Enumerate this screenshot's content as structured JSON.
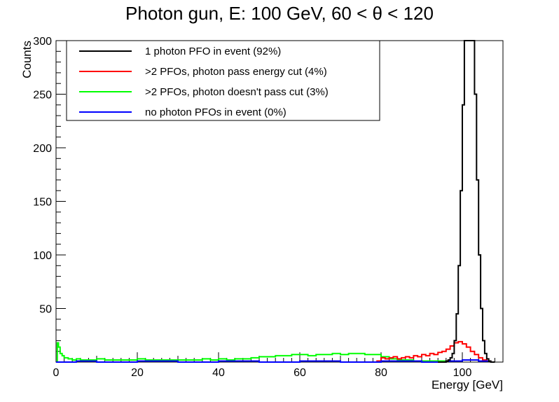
{
  "chart_data": {
    "type": "histogram",
    "title": "Photon gun, E: 100 GeV, 60 < θ < 120",
    "xlabel": "Energy [GeV]",
    "ylabel": "Counts",
    "xlim": [
      0,
      110
    ],
    "ylim": [
      0,
      300
    ],
    "x_ticks": [
      "0",
      "20",
      "40",
      "60",
      "80",
      "100"
    ],
    "y_ticks": [
      "50",
      "100",
      "150",
      "200",
      "250",
      "300"
    ],
    "legend_position": "top-left",
    "series": [
      {
        "name": "1 photon PFO in event (92%)",
        "color": "#000000",
        "points": [
          [
            94,
            0
          ],
          [
            95,
            0
          ],
          [
            96,
            1
          ],
          [
            96.5,
            2
          ],
          [
            97,
            4
          ],
          [
            97.5,
            8
          ],
          [
            98,
            20
          ],
          [
            98.5,
            45
          ],
          [
            99,
            90
          ],
          [
            99.5,
            160
          ],
          [
            100,
            240
          ],
          [
            100.5,
            300
          ],
          [
            102.5,
            300
          ],
          [
            103,
            250
          ],
          [
            103.5,
            170
          ],
          [
            104,
            100
          ],
          [
            104.5,
            50
          ],
          [
            105,
            20
          ],
          [
            105.5,
            8
          ],
          [
            106,
            3
          ],
          [
            106.5,
            1
          ],
          [
            107,
            0
          ],
          [
            108,
            0
          ]
        ]
      },
      {
        "name": ">2 PFOs, photon pass energy cut (4%)",
        "color": "#ff0000",
        "points": [
          [
            78,
            0
          ],
          [
            79,
            1
          ],
          [
            80,
            4
          ],
          [
            81,
            3
          ],
          [
            82,
            4
          ],
          [
            83,
            5
          ],
          [
            84,
            3
          ],
          [
            85,
            4
          ],
          [
            86,
            5
          ],
          [
            87,
            4
          ],
          [
            88,
            6
          ],
          [
            89,
            5
          ],
          [
            90,
            7
          ],
          [
            91,
            6
          ],
          [
            92,
            8
          ],
          [
            93,
            7
          ],
          [
            94,
            9
          ],
          [
            95,
            10
          ],
          [
            96,
            12
          ],
          [
            97,
            15
          ],
          [
            98,
            18
          ],
          [
            99,
            19
          ],
          [
            100,
            17
          ],
          [
            101,
            14
          ],
          [
            102,
            10
          ],
          [
            103,
            7
          ],
          [
            104,
            4
          ],
          [
            105,
            2
          ],
          [
            106,
            1
          ],
          [
            107,
            0
          ]
        ]
      },
      {
        "name": ">2 PFOs, photon doesn't pass cut (3%)",
        "color": "#00ff00",
        "points": [
          [
            0,
            0
          ],
          [
            0.3,
            18
          ],
          [
            0.6,
            14
          ],
          [
            1,
            8
          ],
          [
            1.5,
            6
          ],
          [
            2,
            4
          ],
          [
            3,
            3
          ],
          [
            4,
            2
          ],
          [
            5,
            3
          ],
          [
            6,
            2
          ],
          [
            8,
            2
          ],
          [
            10,
            3
          ],
          [
            12,
            2
          ],
          [
            14,
            2
          ],
          [
            16,
            2
          ],
          [
            18,
            2
          ],
          [
            20,
            3
          ],
          [
            22,
            2
          ],
          [
            24,
            2
          ],
          [
            26,
            2
          ],
          [
            28,
            2
          ],
          [
            30,
            2
          ],
          [
            32,
            2
          ],
          [
            34,
            2
          ],
          [
            36,
            3
          ],
          [
            38,
            2
          ],
          [
            40,
            3
          ],
          [
            42,
            2
          ],
          [
            44,
            3
          ],
          [
            46,
            3
          ],
          [
            48,
            4
          ],
          [
            50,
            5
          ],
          [
            52,
            5
          ],
          [
            54,
            6
          ],
          [
            56,
            6
          ],
          [
            58,
            7
          ],
          [
            60,
            7
          ],
          [
            62,
            6
          ],
          [
            64,
            7
          ],
          [
            66,
            7
          ],
          [
            68,
            8
          ],
          [
            70,
            7
          ],
          [
            72,
            8
          ],
          [
            74,
            8
          ],
          [
            76,
            7
          ],
          [
            78,
            7
          ],
          [
            80,
            5
          ],
          [
            82,
            3
          ],
          [
            84,
            2
          ],
          [
            86,
            2
          ],
          [
            88,
            1
          ],
          [
            90,
            1
          ],
          [
            92,
            1
          ],
          [
            94,
            1
          ],
          [
            96,
            0
          ]
        ]
      },
      {
        "name": "no photon PFOs in event (0%)",
        "color": "#0000ff",
        "points": [
          [
            0,
            0
          ],
          [
            5,
            1
          ],
          [
            10,
            0
          ],
          [
            20,
            1
          ],
          [
            30,
            0
          ],
          [
            40,
            1
          ],
          [
            50,
            0
          ],
          [
            60,
            1
          ],
          [
            70,
            0
          ],
          [
            80,
            1
          ],
          [
            90,
            0
          ],
          [
            96,
            1
          ],
          [
            100,
            2
          ],
          [
            104,
            1
          ],
          [
            107,
            0
          ]
        ]
      }
    ]
  }
}
